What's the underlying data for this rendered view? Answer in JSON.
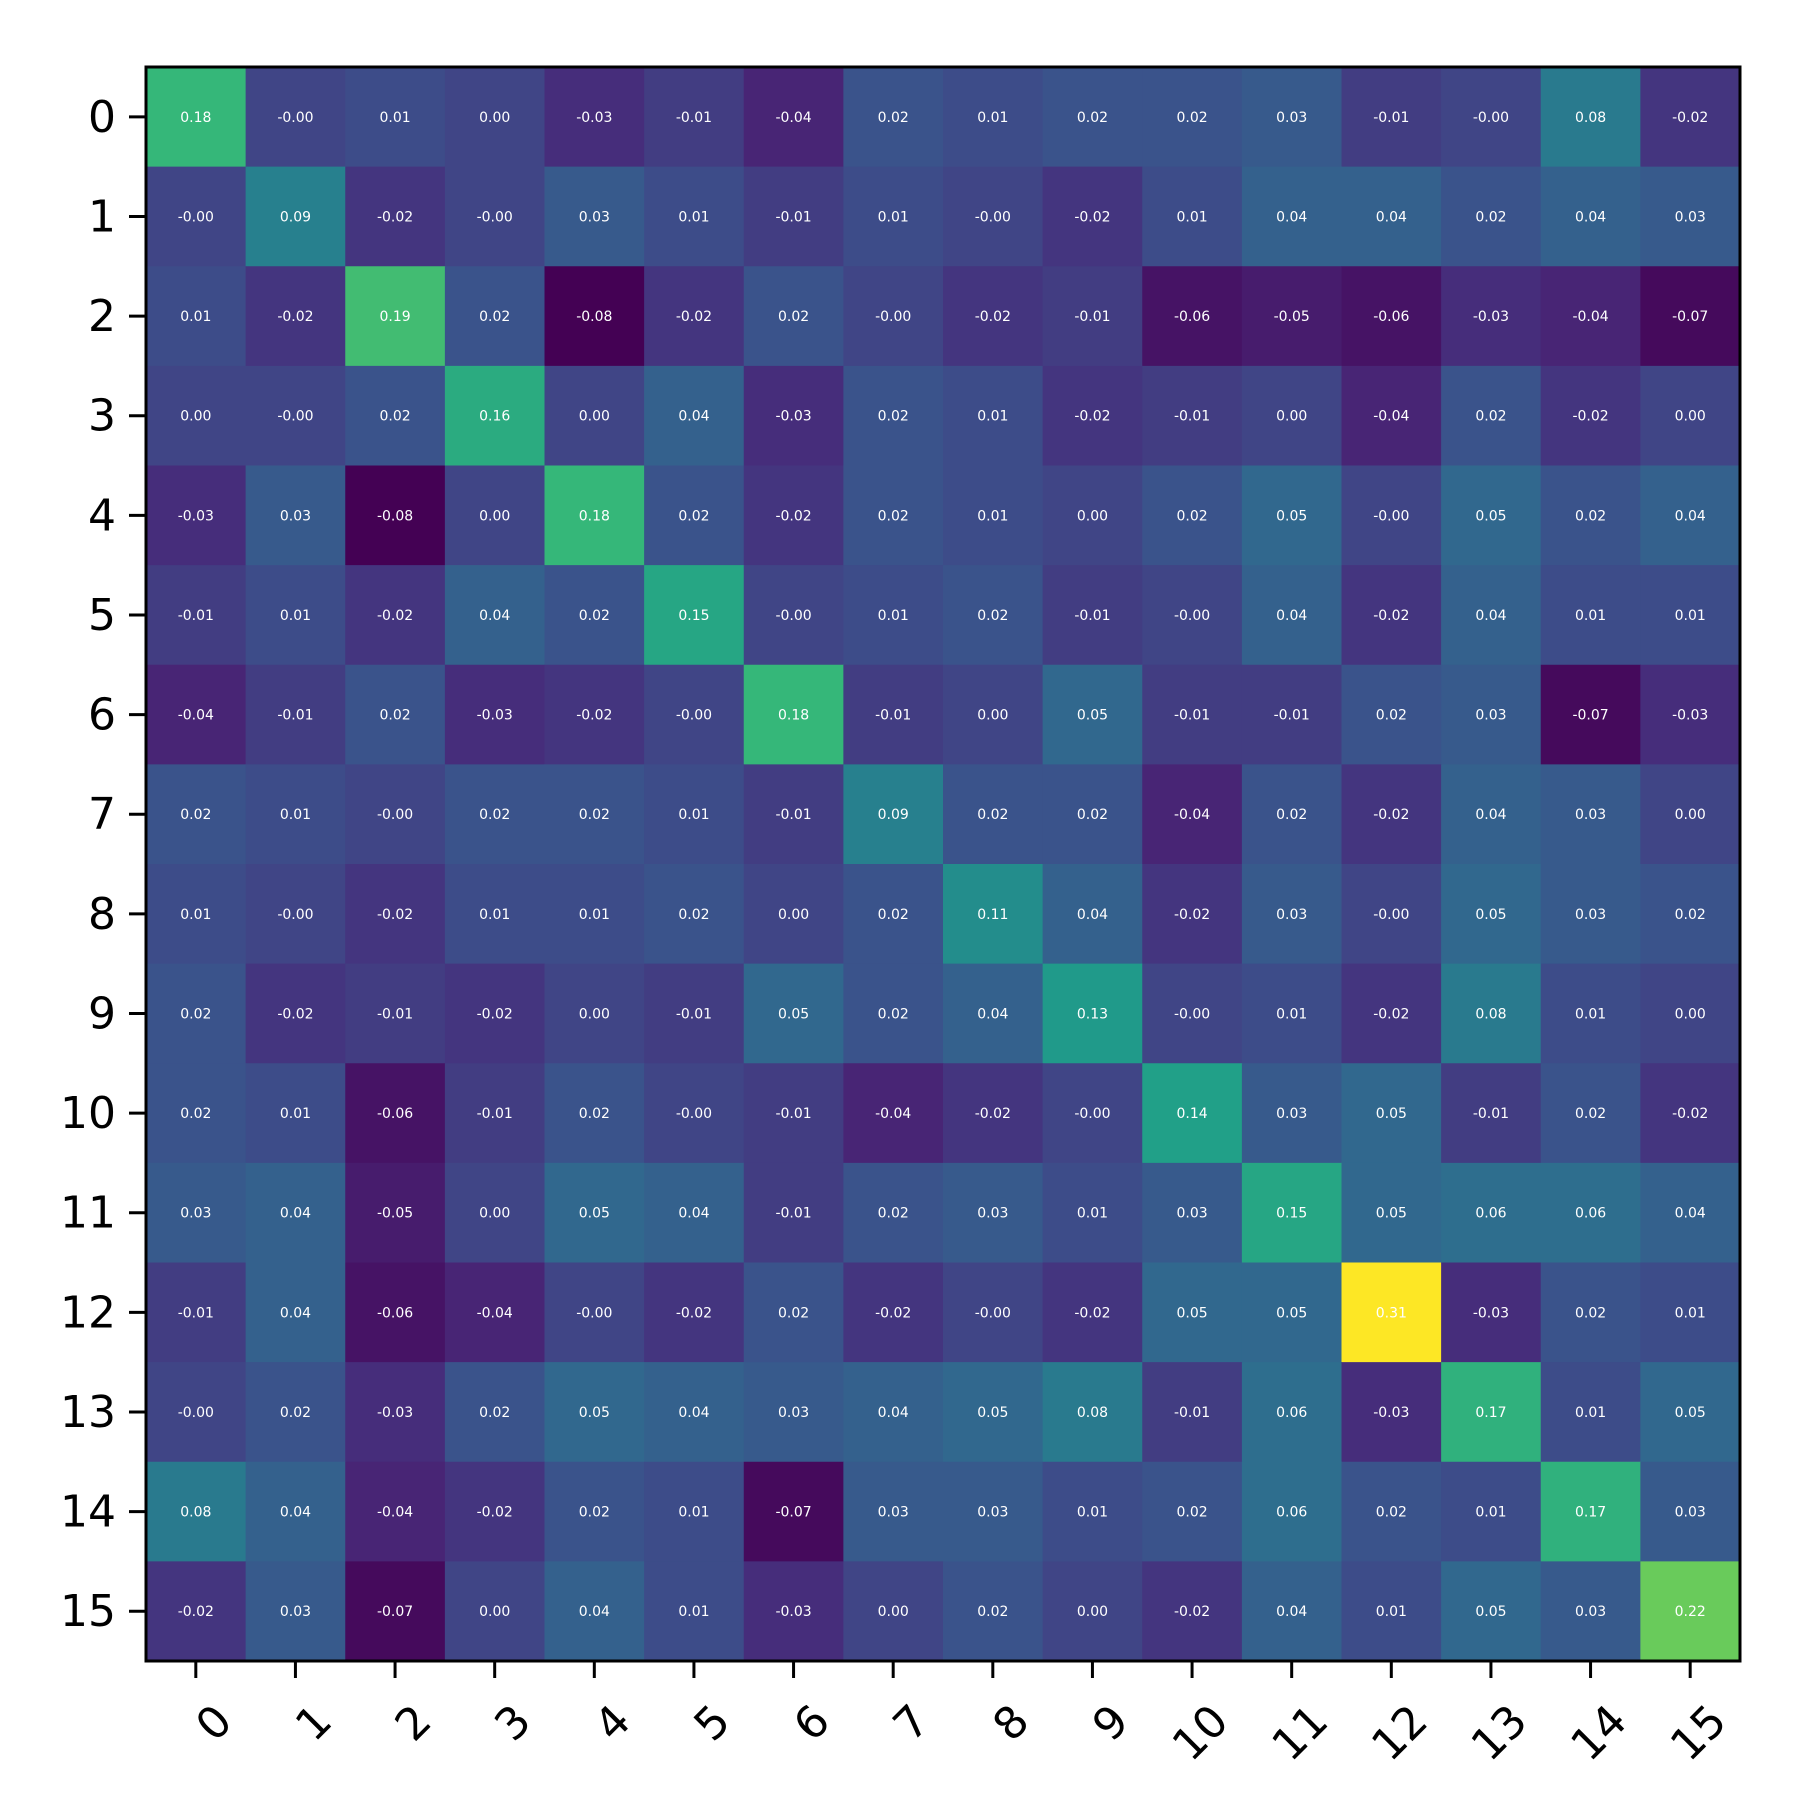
{
  "chart_data": {
    "type": "heatmap",
    "title": "",
    "xlabel": "",
    "ylabel": "",
    "colormap": "viridis",
    "value_range": [
      -0.08,
      0.31
    ],
    "x_categories": [
      "0",
      "1",
      "2",
      "3",
      "4",
      "5",
      "6",
      "7",
      "8",
      "9",
      "10",
      "11",
      "12",
      "13",
      "14",
      "15"
    ],
    "y_categories": [
      "0",
      "1",
      "2",
      "3",
      "4",
      "5",
      "6",
      "7",
      "8",
      "9",
      "10",
      "11",
      "12",
      "13",
      "14",
      "15"
    ],
    "values": [
      [
        0.18,
        -0.0,
        0.01,
        0.0,
        -0.03,
        -0.01,
        -0.04,
        0.02,
        0.01,
        0.02,
        0.02,
        0.03,
        -0.01,
        -0.0,
        0.08,
        -0.02
      ],
      [
        -0.0,
        0.09,
        -0.02,
        -0.0,
        0.03,
        0.01,
        -0.01,
        0.01,
        -0.0,
        -0.02,
        0.01,
        0.04,
        0.04,
        0.02,
        0.04,
        0.03
      ],
      [
        0.01,
        -0.02,
        0.19,
        0.02,
        -0.08,
        -0.02,
        0.02,
        -0.0,
        -0.02,
        -0.01,
        -0.06,
        -0.05,
        -0.06,
        -0.03,
        -0.04,
        -0.07
      ],
      [
        0.0,
        -0.0,
        0.02,
        0.16,
        0.0,
        0.04,
        -0.03,
        0.02,
        0.01,
        -0.02,
        -0.01,
        0.0,
        -0.04,
        0.02,
        -0.02,
        0.0
      ],
      [
        -0.03,
        0.03,
        -0.08,
        0.0,
        0.18,
        0.02,
        -0.02,
        0.02,
        0.01,
        0.0,
        0.02,
        0.05,
        -0.0,
        0.05,
        0.02,
        0.04
      ],
      [
        -0.01,
        0.01,
        -0.02,
        0.04,
        0.02,
        0.15,
        -0.0,
        0.01,
        0.02,
        -0.01,
        -0.0,
        0.04,
        -0.02,
        0.04,
        0.01,
        0.01
      ],
      [
        -0.04,
        -0.01,
        0.02,
        -0.03,
        -0.02,
        -0.0,
        0.18,
        -0.01,
        0.0,
        0.05,
        -0.01,
        -0.01,
        0.02,
        0.03,
        -0.07,
        -0.03
      ],
      [
        0.02,
        0.01,
        -0.0,
        0.02,
        0.02,
        0.01,
        -0.01,
        0.09,
        0.02,
        0.02,
        -0.04,
        0.02,
        -0.02,
        0.04,
        0.03,
        0.0
      ],
      [
        0.01,
        -0.0,
        -0.02,
        0.01,
        0.01,
        0.02,
        0.0,
        0.02,
        0.11,
        0.04,
        -0.02,
        0.03,
        -0.0,
        0.05,
        0.03,
        0.02
      ],
      [
        0.02,
        -0.02,
        -0.01,
        -0.02,
        0.0,
        -0.01,
        0.05,
        0.02,
        0.04,
        0.13,
        -0.0,
        0.01,
        -0.02,
        0.08,
        0.01,
        0.0
      ],
      [
        0.02,
        0.01,
        -0.06,
        -0.01,
        0.02,
        -0.0,
        -0.01,
        -0.04,
        -0.02,
        -0.0,
        0.14,
        0.03,
        0.05,
        -0.01,
        0.02,
        -0.02
      ],
      [
        0.03,
        0.04,
        -0.05,
        0.0,
        0.05,
        0.04,
        -0.01,
        0.02,
        0.03,
        0.01,
        0.03,
        0.15,
        0.05,
        0.06,
        0.06,
        0.04
      ],
      [
        -0.01,
        0.04,
        -0.06,
        -0.04,
        -0.0,
        -0.02,
        0.02,
        -0.02,
        -0.0,
        -0.02,
        0.05,
        0.05,
        0.31,
        -0.03,
        0.02,
        0.01
      ],
      [
        -0.0,
        0.02,
        -0.03,
        0.02,
        0.05,
        0.04,
        0.03,
        0.04,
        0.05,
        0.08,
        -0.01,
        0.06,
        -0.03,
        0.17,
        0.01,
        0.05
      ],
      [
        0.08,
        0.04,
        -0.04,
        -0.02,
        0.02,
        0.01,
        -0.07,
        0.03,
        0.03,
        0.01,
        0.02,
        0.06,
        0.02,
        0.01,
        0.17,
        0.03
      ],
      [
        -0.02,
        0.03,
        -0.07,
        0.0,
        0.04,
        0.01,
        -0.03,
        0.0,
        0.02,
        0.0,
        -0.02,
        0.04,
        0.01,
        0.05,
        0.03,
        0.22
      ]
    ],
    "cell_labels": [
      [
        "0.18",
        "-0.00",
        "0.01",
        "0.00",
        "-0.03",
        "-0.01",
        "-0.04",
        "0.02",
        "0.01",
        "0.02",
        "0.02",
        "0.03",
        "-0.01",
        "-0.00",
        "0.08",
        "-0.02"
      ],
      [
        "-0.00",
        "0.09",
        "-0.02",
        "-0.00",
        "0.03",
        "0.01",
        "-0.01",
        "0.01",
        "-0.00",
        "-0.02",
        "0.01",
        "0.04",
        "0.04",
        "0.02",
        "0.04",
        "0.03"
      ],
      [
        "0.01",
        "-0.02",
        "0.19",
        "0.02",
        "-0.08",
        "-0.02",
        "0.02",
        "-0.00",
        "-0.02",
        "-0.01",
        "-0.06",
        "-0.05",
        "-0.06",
        "-0.03",
        "-0.04",
        "-0.07"
      ],
      [
        "0.00",
        "-0.00",
        "0.02",
        "0.16",
        "0.00",
        "0.04",
        "-0.03",
        "0.02",
        "0.01",
        "-0.02",
        "-0.01",
        "0.00",
        "-0.04",
        "0.02",
        "-0.02",
        "0.00"
      ],
      [
        "-0.03",
        "0.03",
        "-0.08",
        "0.00",
        "0.18",
        "0.02",
        "-0.02",
        "0.02",
        "0.01",
        "0.00",
        "0.02",
        "0.05",
        "-0.00",
        "0.05",
        "0.02",
        "0.04"
      ],
      [
        "-0.01",
        "0.01",
        "-0.02",
        "0.04",
        "0.02",
        "0.15",
        "-0.00",
        "0.01",
        "0.02",
        "-0.01",
        "-0.00",
        "0.04",
        "-0.02",
        "0.04",
        "0.01",
        "0.01"
      ],
      [
        "-0.04",
        "-0.01",
        "0.02",
        "-0.03",
        "-0.02",
        "-0.00",
        "0.18",
        "-0.01",
        "0.00",
        "0.05",
        "-0.01",
        "-0.01",
        "0.02",
        "0.03",
        "-0.07",
        "-0.03"
      ],
      [
        "0.02",
        "0.01",
        "-0.00",
        "0.02",
        "0.02",
        "0.01",
        "-0.01",
        "0.09",
        "0.02",
        "0.02",
        "-0.04",
        "0.02",
        "-0.02",
        "0.04",
        "0.03",
        "0.00"
      ],
      [
        "0.01",
        "-0.00",
        "-0.02",
        "0.01",
        "0.01",
        "0.02",
        "0.00",
        "0.02",
        "0.11",
        "0.04",
        "-0.02",
        "0.03",
        "-0.00",
        "0.05",
        "0.03",
        "0.02"
      ],
      [
        "0.02",
        "-0.02",
        "-0.01",
        "-0.02",
        "0.00",
        "-0.01",
        "0.05",
        "0.02",
        "0.04",
        "0.13",
        "-0.00",
        "0.01",
        "-0.02",
        "0.08",
        "0.01",
        "0.00"
      ],
      [
        "0.02",
        "0.01",
        "-0.06",
        "-0.01",
        "0.02",
        "-0.00",
        "-0.01",
        "-0.04",
        "-0.02",
        "-0.00",
        "0.14",
        "0.03",
        "0.05",
        "-0.01",
        "0.02",
        "-0.02"
      ],
      [
        "0.03",
        "0.04",
        "-0.05",
        "0.00",
        "0.05",
        "0.04",
        "-0.01",
        "0.02",
        "0.03",
        "0.01",
        "0.03",
        "0.15",
        "0.05",
        "0.06",
        "0.06",
        "0.04"
      ],
      [
        "-0.01",
        "0.04",
        "-0.06",
        "-0.04",
        "-0.00",
        "-0.02",
        "0.02",
        "-0.02",
        "-0.00",
        "-0.02",
        "0.05",
        "0.05",
        "0.31",
        "-0.03",
        "0.02",
        "0.01"
      ],
      [
        "-0.00",
        "0.02",
        "-0.03",
        "0.02",
        "0.05",
        "0.04",
        "0.03",
        "0.04",
        "0.05",
        "0.08",
        "-0.01",
        "0.06",
        "-0.03",
        "0.17",
        "0.01",
        "0.05"
      ],
      [
        "0.08",
        "0.04",
        "-0.04",
        "-0.02",
        "0.02",
        "0.01",
        "-0.07",
        "0.03",
        "0.03",
        "0.01",
        "0.02",
        "0.06",
        "0.02",
        "0.01",
        "0.17",
        "0.03"
      ],
      [
        "-0.02",
        "0.03",
        "-0.07",
        "0.00",
        "0.04",
        "0.01",
        "-0.03",
        "0.00",
        "0.02",
        "0.00",
        "-0.02",
        "0.04",
        "0.01",
        "0.05",
        "0.03",
        "0.22"
      ]
    ],
    "grid": false,
    "legend": "none"
  }
}
